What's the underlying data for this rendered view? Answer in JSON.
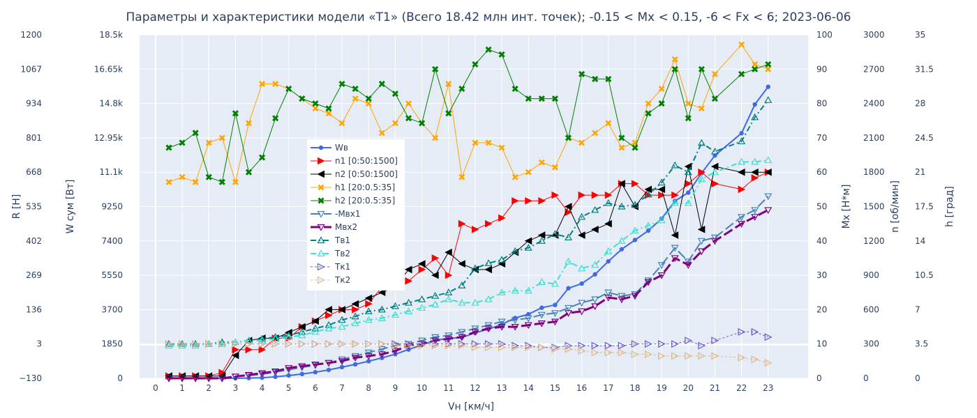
{
  "chart_data": {
    "type": "line",
    "title": "Параметры и характеристики модели «T1» (Всего 18.42 млн инт. точек); -0.15 < Mx < 0.15, -6 < Fx < 6; 2023-06-06",
    "xlabel": "Vн [км/ч]",
    "x_ticks": [
      "0",
      "1",
      "2",
      "3",
      "4",
      "5",
      "6",
      "7",
      "8",
      "9",
      "10",
      "11",
      "12",
      "13",
      "14",
      "15",
      "16",
      "17",
      "18",
      "19",
      "20",
      "21",
      "22",
      "23"
    ],
    "xlim": [
      -0.6,
      24.5
    ],
    "axes": [
      {
        "id": "R",
        "label": "R [Н]",
        "range": [
          -130,
          1200
        ],
        "ticks": [
          "−130",
          "3",
          "136",
          "269",
          "402",
          "535",
          "668",
          "801",
          "934",
          "1067",
          "1200"
        ]
      },
      {
        "id": "W",
        "label": "W сум [Вт]",
        "range": [
          0,
          18500
        ],
        "ticks": [
          "0",
          "1850",
          "3700",
          "5550",
          "7400",
          "9250",
          "11.1k",
          "12.95k",
          "14.8k",
          "16.65k",
          "18.5k"
        ]
      },
      {
        "id": "Mx",
        "label": "Mx [Н*м]",
        "range": [
          0,
          100
        ],
        "ticks": [
          "0",
          "10",
          "20",
          "30",
          "40",
          "50",
          "60",
          "70",
          "80",
          "90",
          "100"
        ]
      },
      {
        "id": "n",
        "label": "n [об/мин]",
        "range": [
          0,
          3000
        ],
        "ticks": [
          "0",
          "300",
          "600",
          "900",
          "1200",
          "1500",
          "1800",
          "2100",
          "2400",
          "2700",
          "3000"
        ]
      },
      {
        "id": "h",
        "label": "h [град]",
        "range": [
          0,
          35
        ],
        "ticks": [
          "0",
          "3.5",
          "7",
          "10.5",
          "14",
          "17.5",
          "21",
          "24.5",
          "28",
          "31.5",
          "35"
        ]
      }
    ],
    "colors": {
      "plot_bg": "#e5ecf6",
      "grid": "#ffffff",
      "paper": "#ffffff"
    },
    "legend_position": "inside-left",
    "series": [
      {
        "name": "Wв",
        "axis": "W",
        "color": "#4169e1",
        "dash": "solid",
        "marker": "circle",
        "width": 2,
        "x": [
          0.5,
          1,
          1.5,
          2,
          2.5,
          3,
          3.5,
          4,
          4.5,
          5,
          5.5,
          6,
          6.5,
          7,
          7.5,
          8,
          8.5,
          9,
          9.5,
          10,
          10.5,
          11,
          11.5,
          12,
          12.5,
          13,
          13.5,
          14,
          14.5,
          15,
          15.5,
          16,
          16.5,
          17,
          17.5,
          18,
          18.5,
          19,
          19.5,
          20,
          20.5,
          21,
          22,
          22.5,
          23
        ],
        "y": [
          0,
          0,
          0,
          0,
          0,
          0,
          10,
          30,
          80,
          150,
          230,
          330,
          450,
          600,
          750,
          920,
          1100,
          1300,
          1550,
          1800,
          2050,
          2150,
          2200,
          2450,
          2650,
          2900,
          3250,
          3450,
          3800,
          3950,
          4850,
          5100,
          5600,
          6300,
          6950,
          7450,
          7950,
          8600,
          9550,
          10000,
          11050,
          12000,
          13200,
          14750,
          15700
        ]
      },
      {
        "name": "n1 [0:50:1500]",
        "axis": "n",
        "color": "#ff0000",
        "dash": "solid",
        "marker": "triangle-right",
        "width": 1,
        "x": [
          0.5,
          1,
          1.5,
          2,
          2.5,
          3,
          3.5,
          4,
          4.5,
          5,
          5.5,
          6,
          6.5,
          7,
          7.5,
          8,
          8.5,
          9,
          9.5,
          10,
          10.5,
          11,
          11.5,
          12,
          12.5,
          13,
          13.5,
          14,
          14.5,
          15,
          15.5,
          16,
          16.5,
          17,
          17.5,
          18,
          18.5,
          19,
          19.5,
          20,
          20.5,
          21,
          22,
          22.5,
          23
        ],
        "y": [
          20,
          20,
          20,
          20,
          50,
          250,
          250,
          250,
          350,
          350,
          450,
          500,
          550,
          600,
          600,
          650,
          800,
          800,
          850,
          950,
          1050,
          900,
          1350,
          1300,
          1350,
          1400,
          1550,
          1550,
          1550,
          1600,
          1450,
          1600,
          1600,
          1600,
          1700,
          1700,
          1600,
          1600,
          1600,
          1700,
          1800,
          1700,
          1650,
          1750,
          1800
        ]
      },
      {
        "name": "n2 [0:50:1500]",
        "axis": "n",
        "color": "#000000",
        "dash": "solid",
        "marker": "triangle-left",
        "width": 1,
        "x": [
          0.5,
          1,
          1.5,
          2,
          2.5,
          3,
          3.5,
          4,
          4.5,
          5,
          5.5,
          6,
          6.5,
          7,
          7.5,
          8,
          8.5,
          9,
          9.5,
          10,
          10.5,
          11,
          11.5,
          12,
          12.5,
          13,
          13.5,
          14,
          14.5,
          15,
          15.5,
          16,
          16.5,
          17,
          17.5,
          18,
          18.5,
          19,
          19.5,
          20,
          20.5,
          21,
          22,
          22.5,
          23
        ],
        "y": [
          20,
          20,
          20,
          20,
          20,
          200,
          330,
          350,
          350,
          400,
          450,
          500,
          600,
          600,
          650,
          700,
          750,
          800,
          950,
          1000,
          900,
          1100,
          1000,
          950,
          950,
          1000,
          1100,
          1200,
          1250,
          1250,
          1500,
          1250,
          1300,
          1350,
          1700,
          1500,
          1650,
          1650,
          1250,
          1850,
          1300,
          1850,
          1800,
          1800,
          1800
        ]
      },
      {
        "name": "h1 [20:0.5:35]",
        "axis": "h",
        "color": "#ffa500",
        "dash": "solid",
        "marker": "x",
        "width": 1,
        "x": [
          0.5,
          1,
          1.5,
          2,
          2.5,
          3,
          3.5,
          4,
          4.5,
          5,
          5.5,
          6,
          6.5,
          7,
          7.5,
          8,
          8.5,
          9,
          9.5,
          10,
          10.5,
          11,
          11.5,
          12,
          12.5,
          13,
          13.5,
          14,
          14.5,
          15,
          15.5,
          16,
          16.5,
          17,
          17.5,
          18,
          18.5,
          19,
          19.5,
          20,
          20.5,
          21,
          22,
          22.5,
          23
        ],
        "y": [
          20,
          20.5,
          20,
          24,
          24.5,
          20,
          26,
          30,
          30,
          29.5,
          28.5,
          27.5,
          27,
          26,
          28.5,
          28,
          25,
          26,
          28,
          26,
          24.5,
          30,
          20.5,
          24,
          24,
          23.5,
          20.5,
          21,
          22,
          21.5,
          24.5,
          24,
          25,
          26,
          23.5,
          24,
          28,
          29.5,
          32.5,
          28,
          27.5,
          31,
          34,
          32,
          31.5
        ]
      },
      {
        "name": "h2 [20:0.5:35]",
        "axis": "h",
        "color": "#008000",
        "dash": "solid",
        "marker": "x-thick",
        "width": 1,
        "x": [
          0.5,
          1,
          1.5,
          2,
          2.5,
          3,
          3.5,
          4,
          4.5,
          5,
          5.5,
          6,
          6.5,
          7,
          7.5,
          8,
          8.5,
          9,
          9.5,
          10,
          10.5,
          11,
          11.5,
          12,
          12.5,
          13,
          13.5,
          14,
          14.5,
          15,
          15.5,
          16,
          16.5,
          17,
          17.5,
          18,
          18.5,
          19,
          19.5,
          20,
          20.5,
          21,
          22,
          22.5,
          23
        ],
        "y": [
          23.5,
          24,
          25,
          20.5,
          20,
          27,
          21,
          22.5,
          26.5,
          29.5,
          28.5,
          28,
          27.5,
          30,
          29.5,
          28.5,
          30,
          29,
          26.5,
          26,
          31.5,
          27,
          29.5,
          32,
          33.5,
          33,
          29.5,
          28.5,
          28.5,
          28.5,
          24.5,
          31,
          30.5,
          30.5,
          24.5,
          23.5,
          27,
          28,
          31.5,
          26.5,
          31.5,
          28.5,
          31,
          31.5,
          32
        ]
      },
      {
        "name": "-Мвх1",
        "axis": "Mx",
        "color": "#4682b4",
        "dash": "longdash",
        "marker": "triangle-down-open",
        "width": 2,
        "x": [
          0.5,
          1,
          1.5,
          2,
          2.5,
          3,
          3.5,
          4,
          4.5,
          5,
          5.5,
          6,
          6.5,
          7,
          7.5,
          8,
          8.5,
          9,
          9.5,
          10,
          10.5,
          11,
          11.5,
          12,
          12.5,
          13,
          13.5,
          14,
          14.5,
          15,
          15.5,
          16,
          16.5,
          17,
          17.5,
          18,
          18.5,
          19,
          19.5,
          20,
          20.5,
          21,
          22,
          22.5,
          23
        ],
        "y": [
          0,
          0,
          0,
          0,
          0,
          0.5,
          0.8,
          1.2,
          1.8,
          2.5,
          3.2,
          3.8,
          4.5,
          5.5,
          6.5,
          7.5,
          8.5,
          9.5,
          10,
          11,
          12,
          12.5,
          13.5,
          14.5,
          15.5,
          16.5,
          17,
          17.5,
          18.5,
          19,
          20.5,
          22,
          23,
          25,
          24,
          24.5,
          28.5,
          33,
          38,
          34,
          40,
          41,
          47,
          49,
          53
        ]
      },
      {
        "name": "Мвх2",
        "axis": "Mx",
        "color": "#800080",
        "dash": "longdash",
        "marker": "triangle-down-open",
        "width": 3,
        "x": [
          0.5,
          1,
          1.5,
          2,
          2.5,
          3,
          3.5,
          4,
          4.5,
          5,
          5.5,
          6,
          6.5,
          7,
          7.5,
          8,
          8.5,
          9,
          9.5,
          10,
          10.5,
          11,
          11.5,
          12,
          12.5,
          13,
          13.5,
          14,
          14.5,
          15,
          15.5,
          16,
          16.5,
          17,
          17.5,
          18,
          18.5,
          19,
          19.5,
          20,
          20.5,
          21,
          22,
          22.5,
          23
        ],
        "y": [
          0,
          0,
          0,
          0,
          0,
          0.5,
          1,
          1.5,
          2,
          3,
          3.5,
          4,
          4.5,
          5,
          6,
          6.5,
          7,
          8,
          9.5,
          10,
          11,
          11.5,
          12,
          13.5,
          14.5,
          15,
          15,
          15.5,
          16,
          16.5,
          19,
          19.5,
          21,
          23.5,
          23,
          24,
          28,
          30,
          35,
          33,
          37,
          40,
          45,
          47,
          49
        ]
      },
      {
        "name": "Тв1",
        "axis": "Mx",
        "color": "#008080",
        "dash": "dashdot",
        "marker": "triangle-up-open",
        "width": 2,
        "x": [
          0.5,
          1,
          1.5,
          2,
          2.5,
          3,
          3.5,
          4,
          4.5,
          5,
          5.5,
          6,
          6.5,
          7,
          7.5,
          8,
          8.5,
          9,
          9.5,
          10,
          10.5,
          11,
          11.5,
          12,
          12.5,
          13,
          13.5,
          14,
          14.5,
          15,
          15.5,
          16,
          16.5,
          17,
          17.5,
          18,
          18.5,
          19,
          19.5,
          20,
          20.5,
          21,
          22,
          22.5,
          23
        ],
        "y": [
          10,
          10,
          10,
          10,
          10.5,
          10.5,
          11,
          11.5,
          12,
          12.5,
          13.5,
          14.5,
          15.5,
          17,
          18,
          19.5,
          20,
          21,
          22,
          23,
          24,
          25,
          27,
          32,
          33.5,
          34.5,
          37,
          38,
          40,
          42,
          41,
          47,
          49,
          51,
          50,
          50.5,
          53.5,
          57,
          62,
          60,
          68.5,
          66,
          69,
          76,
          81
        ]
      },
      {
        "name": "Тв2",
        "axis": "Mx",
        "color": "#40e0d0",
        "dash": "dashdot",
        "marker": "triangle-up-open",
        "width": 2,
        "x": [
          0.5,
          1,
          1.5,
          2,
          2.5,
          3,
          3.5,
          4,
          4.5,
          5,
          5.5,
          6,
          6.5,
          7,
          7.5,
          8,
          8.5,
          9,
          9.5,
          10,
          10.5,
          11,
          11.5,
          12,
          12.5,
          13,
          13.5,
          14,
          14.5,
          15,
          15.5,
          16,
          16.5,
          17,
          17.5,
          18,
          18.5,
          19,
          19.5,
          20,
          20.5,
          21,
          22,
          22.5,
          23
        ],
        "y": [
          9.5,
          9.5,
          9.5,
          10,
          10,
          10.5,
          11,
          11,
          11.5,
          12,
          12.5,
          13.5,
          14.5,
          15,
          16,
          17,
          17.5,
          18.5,
          19.5,
          20.5,
          21.5,
          23,
          22,
          22,
          23,
          25,
          25.5,
          25.5,
          28,
          27.5,
          34,
          32,
          33,
          37,
          40,
          43,
          44.5,
          46,
          51,
          51,
          58,
          60,
          63,
          63,
          63.5
        ]
      },
      {
        "name": "Тк1",
        "axis": "Mx",
        "color": "#6a5acd",
        "dash": "dot",
        "marker": "triangle-right-open",
        "width": 1,
        "x": [
          0.5,
          1,
          1.5,
          2,
          2.5,
          3,
          3.5,
          4,
          4.5,
          5,
          5.5,
          6,
          6.5,
          7,
          7.5,
          8,
          8.5,
          9,
          9.5,
          10,
          10.5,
          11,
          11.5,
          12,
          12.5,
          13,
          13.5,
          14,
          14.5,
          15,
          15.5,
          16,
          16.5,
          17,
          17.5,
          18,
          18.5,
          19,
          19.5,
          20,
          20.5,
          21,
          22,
          22.5,
          23
        ],
        "y": [
          10,
          10,
          10,
          10,
          10,
          10,
          10,
          10,
          10,
          10,
          10,
          10,
          10,
          10,
          10,
          10,
          10,
          10,
          10,
          10,
          10,
          10,
          10,
          10,
          10,
          10,
          9.5,
          9.5,
          9,
          9,
          9.5,
          9.5,
          9.5,
          9.5,
          9.5,
          10,
          10,
          10,
          10,
          11,
          9.5,
          11,
          13.5,
          13.5,
          12
        ]
      },
      {
        "name": "Тк2",
        "axis": "Mx",
        "color": "#deb887",
        "dash": "dot",
        "marker": "triangle-right-open",
        "width": 1,
        "x": [
          0.5,
          1,
          1.5,
          2,
          2.5,
          3,
          3.5,
          4,
          4.5,
          5,
          5.5,
          6,
          6.5,
          7,
          7.5,
          8,
          8.5,
          9,
          9.5,
          10,
          10.5,
          11,
          11.5,
          12,
          12.5,
          13,
          13.5,
          14,
          14.5,
          15,
          15.5,
          16,
          16.5,
          17,
          17.5,
          18,
          18.5,
          19,
          19.5,
          20,
          20.5,
          21,
          22,
          22.5,
          23
        ],
        "y": [
          10,
          10,
          10,
          10,
          10,
          10,
          10,
          10,
          10,
          10,
          10,
          10,
          10,
          10,
          10,
          10,
          10,
          9.5,
          9.5,
          9.5,
          9.5,
          9.5,
          9.5,
          9,
          9,
          9,
          9,
          9,
          9,
          8.5,
          8.5,
          8,
          7.5,
          7.5,
          7.5,
          7,
          7,
          6.5,
          6.5,
          6.5,
          6.5,
          6.5,
          6,
          5.5,
          4.5
        ]
      }
    ]
  }
}
